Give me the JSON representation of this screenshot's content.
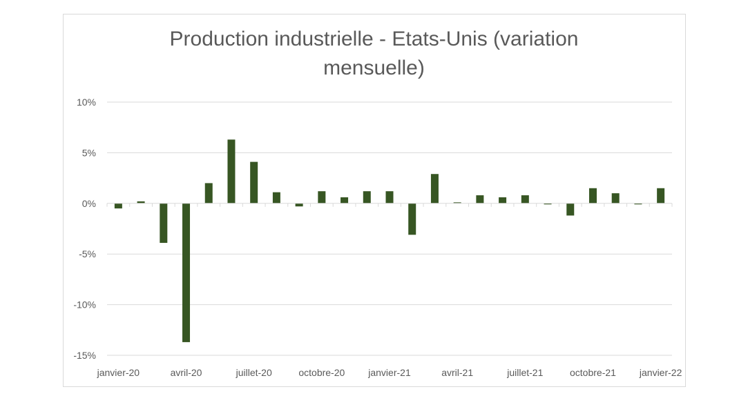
{
  "chart_data": {
    "type": "bar",
    "title": "Production industrielle - Etats-Unis (variation mensuelle)",
    "title_lines": [
      "Production industrielle - Etats-Unis (variation",
      "mensuelle)"
    ],
    "xlabel": "",
    "ylabel": "",
    "ylim": [
      -15,
      10
    ],
    "yticks": [
      10,
      5,
      0,
      -5,
      -10,
      -15
    ],
    "ytick_labels": [
      "10%",
      "5%",
      "0%",
      "-5%",
      "-10%",
      "-15%"
    ],
    "x_tick_labels": [
      "janvier-20",
      "avril-20",
      "juillet-20",
      "octobre-20",
      "janvier-21",
      "avril-21",
      "juillet-21",
      "octobre-21",
      "janvier-22"
    ],
    "x_tick_every": 3,
    "categories": [
      "2020-01",
      "2020-02",
      "2020-03",
      "2020-04",
      "2020-05",
      "2020-06",
      "2020-07",
      "2020-08",
      "2020-09",
      "2020-10",
      "2020-11",
      "2020-12",
      "2021-01",
      "2021-02",
      "2021-03",
      "2021-04",
      "2021-05",
      "2021-06",
      "2021-07",
      "2021-08",
      "2021-09",
      "2021-10",
      "2021-11",
      "2021-12",
      "2022-01"
    ],
    "values": [
      -0.5,
      0.2,
      -3.9,
      -13.7,
      2.0,
      6.3,
      4.1,
      1.1,
      -0.3,
      1.2,
      0.6,
      1.2,
      1.2,
      -3.1,
      2.9,
      0.1,
      0.8,
      0.6,
      0.8,
      -0.1,
      -1.2,
      1.5,
      1.0,
      -0.1,
      1.5
    ],
    "grid": true,
    "legend": false,
    "colors": {
      "bar": "#375623",
      "grid": "#d9d9d9",
      "text": "#595959"
    }
  }
}
